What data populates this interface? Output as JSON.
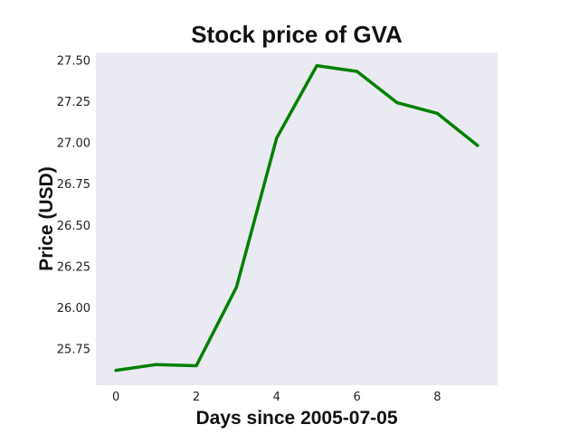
{
  "chart_data": {
    "type": "line",
    "title": "Stock price of GVA",
    "xlabel": "Days since 2005-07-05",
    "ylabel": "Price (USD)",
    "x": [
      0,
      1,
      2,
      3,
      4,
      5,
      6,
      7,
      8,
      9
    ],
    "series": [
      {
        "values": [
          25.62,
          25.655,
          25.648,
          26.125,
          27.03,
          27.47,
          27.435,
          27.245,
          27.18,
          26.985
        ],
        "color": "#008000"
      }
    ],
    "xlim": [
      -0.5,
      9.5
    ],
    "ylim": [
      25.53,
      27.55
    ],
    "xticks": [
      0,
      2,
      4,
      6,
      8
    ],
    "yticks": [
      25.75,
      26.0,
      26.25,
      26.5,
      26.75,
      27.0,
      27.25,
      27.5
    ],
    "xtick_labels": [
      "0",
      "2",
      "4",
      "6",
      "8"
    ],
    "ytick_labels": [
      "25.75",
      "26.00",
      "26.25",
      "26.50",
      "26.75",
      "27.00",
      "27.25",
      "27.50"
    ],
    "grid": false,
    "plot_background": "#eaeaf2"
  }
}
